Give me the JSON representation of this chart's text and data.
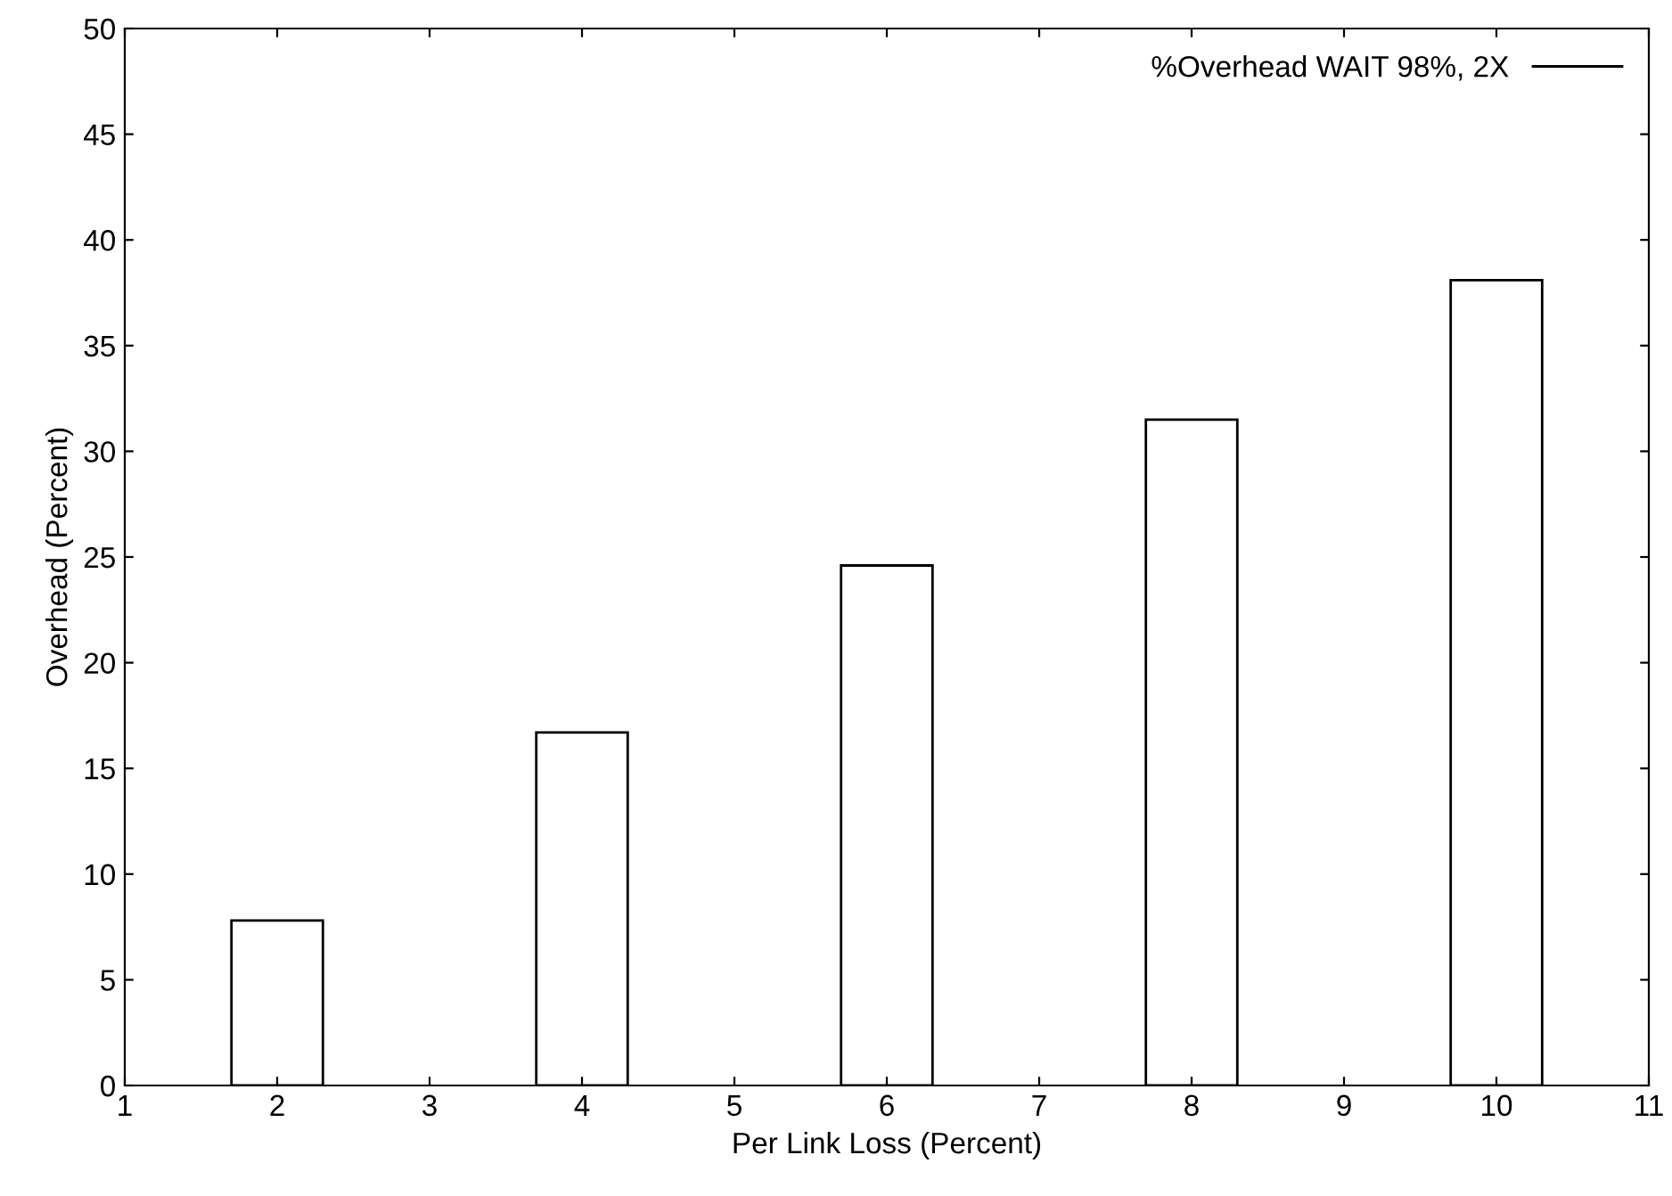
{
  "chart_data": {
    "type": "bar",
    "xlabel": "Per Link Loss (Percent)",
    "ylabel": "Overhead (Percent)",
    "x": [
      2,
      4,
      6,
      8,
      10
    ],
    "series": [
      {
        "name": "%Overhead WAIT 98%, 2X",
        "color": "#000000",
        "values": [
          7.8,
          16.7,
          24.6,
          31.5,
          38.1
        ]
      }
    ],
    "xlim": [
      1,
      11
    ],
    "xticks": [
      1,
      2,
      3,
      4,
      5,
      6,
      7,
      8,
      9,
      10,
      11
    ],
    "ylim": [
      0,
      50
    ],
    "yticks": [
      0,
      5,
      10,
      15,
      20,
      25,
      30,
      35,
      40,
      45,
      50
    ],
    "grid": false,
    "legend": "top right"
  }
}
